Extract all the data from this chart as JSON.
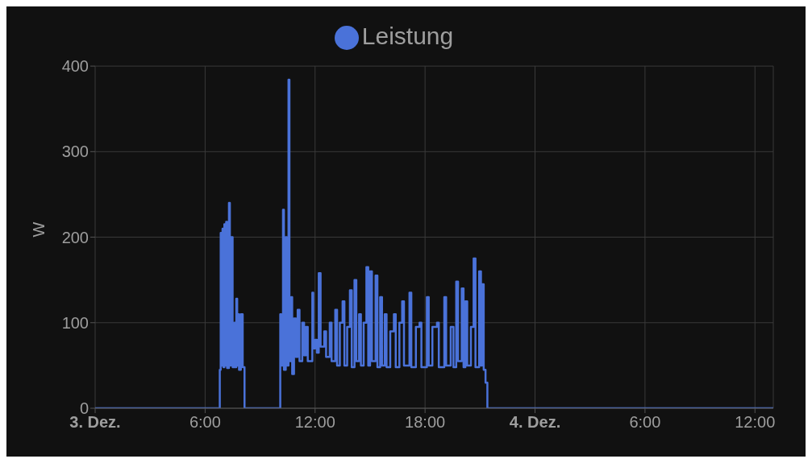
{
  "chart_data": {
    "type": "step",
    "ylabel": "W",
    "legend": "top",
    "grid": true,
    "marker": "none",
    "line_style": "solid",
    "xlim": [
      "--12-03T00:00",
      "--12-04T13:00"
    ],
    "xticks": [
      {
        "value": "--12-03T00:00",
        "label": "3. Dez."
      },
      {
        "value": "--12-03T06:00",
        "label": "6:00"
      },
      {
        "value": "--12-03T12:00",
        "label": "12:00"
      },
      {
        "value": "--12-03T18:00",
        "label": "18:00"
      },
      {
        "value": "--12-04T00:00",
        "label": "4. Dez."
      },
      {
        "value": "--12-04T06:00",
        "label": "6:00"
      },
      {
        "value": "--12-04T12:00",
        "label": "12:00"
      }
    ],
    "ylim": [
      0,
      400
    ],
    "yticks": [
      0,
      100,
      200,
      300,
      400
    ],
    "series": [
      {
        "name": "Leistung",
        "color": "#4a72d9",
        "x": [
          "--12-03T00:00",
          "--12-03T06:48",
          "--12-03T06:51",
          "--12-03T06:54",
          "--12-03T06:57",
          "--12-03T07:00",
          "--12-03T07:03",
          "--12-03T07:06",
          "--12-03T07:09",
          "--12-03T07:12",
          "--12-03T07:18",
          "--12-03T07:21",
          "--12-03T07:24",
          "--12-03T07:30",
          "--12-03T07:36",
          "--12-03T07:39",
          "--12-03T07:42",
          "--12-03T07:45",
          "--12-03T07:48",
          "--12-03T07:51",
          "--12-03T07:57",
          "--12-03T08:03",
          "--12-03T08:09",
          "--12-03T10:06",
          "--12-03T10:09",
          "--12-03T10:15",
          "--12-03T10:18",
          "--12-03T10:24",
          "--12-03T10:27",
          "--12-03T10:33",
          "--12-03T10:36",
          "--12-03T10:42",
          "--12-03T10:45",
          "--12-03T10:51",
          "--12-03T10:57",
          "--12-03T11:03",
          "--12-03T11:09",
          "--12-03T11:18",
          "--12-03T11:24",
          "--12-03T11:30",
          "--12-03T11:36",
          "--12-03T11:51",
          "--12-03T11:54",
          "--12-03T12:00",
          "--12-03T12:06",
          "--12-03T12:12",
          "--12-03T12:18",
          "--12-03T12:30",
          "--12-03T12:36",
          "--12-03T12:48",
          "--12-03T12:54",
          "--12-03T13:06",
          "--12-03T13:12",
          "--12-03T13:21",
          "--12-03T13:30",
          "--12-03T13:36",
          "--12-03T13:45",
          "--12-03T13:54",
          "--12-03T14:00",
          "--12-03T14:09",
          "--12-03T14:15",
          "--12-03T14:24",
          "--12-03T14:30",
          "--12-03T14:39",
          "--12-03T14:48",
          "--12-03T14:54",
          "--12-03T15:00",
          "--12-03T15:06",
          "--12-03T15:18",
          "--12-03T15:24",
          "--12-03T15:33",
          "--12-03T15:39",
          "--12-03T15:48",
          "--12-03T15:54",
          "--12-03T16:06",
          "--12-03T16:18",
          "--12-03T16:24",
          "--12-03T16:36",
          "--12-03T16:45",
          "--12-03T16:51",
          "--12-03T17:09",
          "--12-03T17:15",
          "--12-03T17:30",
          "--12-03T17:42",
          "--12-03T17:48",
          "--12-03T18:06",
          "--12-03T18:12",
          "--12-03T18:24",
          "--12-03T18:39",
          "--12-03T18:45",
          "--12-03T19:03",
          "--12-03T19:09",
          "--12-03T19:24",
          "--12-03T19:33",
          "--12-03T19:42",
          "--12-03T19:48",
          "--12-03T20:00",
          "--12-03T20:06",
          "--12-03T20:12",
          "--12-03T20:18",
          "--12-03T20:30",
          "--12-03T20:39",
          "--12-03T20:45",
          "--12-03T20:57",
          "--12-03T21:03",
          "--12-03T21:06",
          "--12-03T21:12",
          "--12-03T21:18",
          "--12-03T21:24",
          "--12-04T13:00"
        ],
        "values": [
          0,
          45,
          205,
          50,
          210,
          48,
          215,
          50,
          218,
          47,
          240,
          50,
          200,
          48,
          100,
          48,
          128,
          50,
          110,
          45,
          110,
          48,
          0,
          110,
          50,
          232,
          45,
          200,
          50,
          384,
          55,
          130,
          40,
          105,
          60,
          115,
          55,
          100,
          62,
          95,
          55,
          135,
          70,
          80,
          65,
          158,
          72,
          90,
          60,
          100,
          55,
          115,
          50,
          100,
          125,
          50,
          95,
          138,
          48,
          150,
          55,
          110,
          50,
          100,
          165,
          50,
          160,
          55,
          155,
          48,
          130,
          50,
          110,
          48,
          90,
          110,
          48,
          100,
          125,
          50,
          135,
          48,
          95,
          100,
          48,
          130,
          50,
          95,
          100,
          48,
          130,
          50,
          95,
          48,
          148,
          55,
          140,
          48,
          125,
          50,
          95,
          175,
          48,
          160,
          50,
          145,
          45,
          30,
          0,
          0
        ]
      }
    ]
  }
}
